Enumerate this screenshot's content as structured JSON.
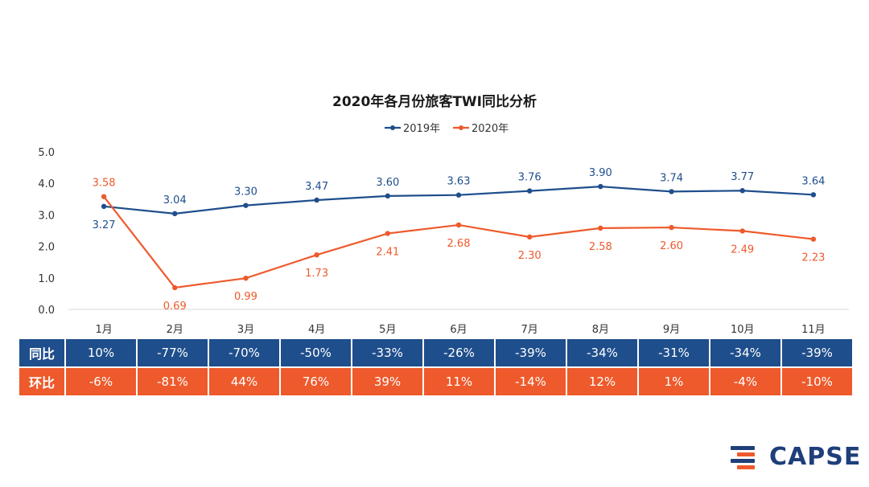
{
  "chart_data": {
    "type": "line",
    "title": "2020年各月份旅客TWI同比分析",
    "categories": [
      "1月",
      "2月",
      "3月",
      "4月",
      "5月",
      "6月",
      "7月",
      "8月",
      "9月",
      "10月",
      "11月"
    ],
    "ylim": [
      0,
      5
    ],
    "yticks": [
      "0.0",
      "1.0",
      "2.0",
      "3.0",
      "4.0",
      "5.0"
    ],
    "grid": false,
    "legend_position": "top-center",
    "series": [
      {
        "name": "2019年",
        "color": "#1f4e8c",
        "values": [
          3.27,
          3.04,
          3.3,
          3.47,
          3.6,
          3.63,
          3.76,
          3.9,
          3.74,
          3.77,
          3.64
        ],
        "labels": [
          "3.27",
          "3.04",
          "3.30",
          "3.47",
          "3.60",
          "3.63",
          "3.76",
          "3.90",
          "3.74",
          "3.77",
          "3.64"
        ]
      },
      {
        "name": "2020年",
        "color": "#ee5a2c",
        "values": [
          3.58,
          0.69,
          0.99,
          1.73,
          2.41,
          2.68,
          2.3,
          2.58,
          2.6,
          2.49,
          2.23
        ],
        "labels": [
          "3.58",
          "0.69",
          "0.99",
          "1.73",
          "2.41",
          "2.68",
          "2.30",
          "2.58",
          "2.60",
          "2.49",
          "2.23"
        ]
      }
    ]
  },
  "table": {
    "yoy": {
      "header": "同比",
      "color": "#1f4e8c",
      "values": [
        "10%",
        "-77%",
        "-70%",
        "-50%",
        "-33%",
        "-26%",
        "-39%",
        "-34%",
        "-31%",
        "-34%",
        "-39%"
      ]
    },
    "mom": {
      "header": "环比",
      "color": "#ee5a2c",
      "values": [
        "-6%",
        "-81%",
        "44%",
        "76%",
        "39%",
        "11%",
        "-14%",
        "12%",
        "1%",
        "-4%",
        "-10%"
      ]
    }
  },
  "logo": {
    "text": "CAPSE"
  }
}
